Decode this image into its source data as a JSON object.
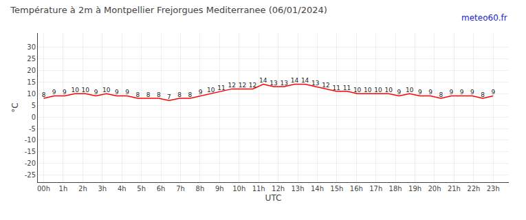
{
  "chart_data": {
    "type": "line",
    "title": "Température à 2m à Montpellier Frejorgues Mediterranee (06/01/2024)",
    "x_label": "UTC",
    "y_label": "°C",
    "annotations": [
      {
        "text": "meteo60.fr",
        "color": "#2222cc"
      }
    ],
    "x": [
      0,
      0.5348837209,
      1.0697674419,
      1.6046511628,
      2.1395348837,
      2.6744186047,
      3.2093023256,
      3.7441860465,
      4.2790697674,
      4.8139534884,
      5.3488372093,
      5.8837209302,
      6.4186046512,
      6.9534883721,
      7.488372093,
      8.023255814,
      8.5581395349,
      9.0930232558,
      9.6279069767,
      10.1627906977,
      10.6976744186,
      11.2325581395,
      11.7674418605,
      12.3023255814,
      12.8372093023,
      13.3720930233,
      13.9069767442,
      14.4418604651,
      14.976744186,
      15.511627907,
      16.0465116279,
      16.5813953488,
      17.1162790698,
      17.6511627907,
      18.1860465116,
      18.7209302326,
      19.2558139535,
      19.7906976744,
      20.3255813953,
      20.8604651163,
      21.3953488372,
      21.9302325581,
      22.4651162791,
      23
    ],
    "values": [
      8,
      9,
      9,
      10,
      10,
      9,
      10,
      9,
      9,
      8,
      8,
      8,
      7,
      8,
      8,
      9,
      10,
      11,
      12,
      12,
      12,
      14,
      13,
      13,
      14,
      14,
      13,
      12,
      11,
      11,
      10,
      10,
      10,
      10,
      9,
      10,
      9,
      9,
      8,
      9,
      9,
      9,
      8,
      9
    ],
    "color": "#ff0000",
    "data_labels": true,
    "grid": true,
    "xlim": [
      -0.3,
      23.8
    ],
    "xticks": [
      {
        "value": 0,
        "label": "00h"
      },
      {
        "value": 1,
        "label": "1h"
      },
      {
        "value": 2,
        "label": "2h"
      },
      {
        "value": 3,
        "label": "3h"
      },
      {
        "value": 4,
        "label": "4h"
      },
      {
        "value": 5,
        "label": "5h"
      },
      {
        "value": 6,
        "label": "6h"
      },
      {
        "value": 7,
        "label": "7h"
      },
      {
        "value": 8,
        "label": "8h"
      },
      {
        "value": 9,
        "label": "9h"
      },
      {
        "value": 10,
        "label": "10h"
      },
      {
        "value": 11,
        "label": "11h"
      },
      {
        "value": 12,
        "label": "12h"
      },
      {
        "value": 13,
        "label": "13h"
      },
      {
        "value": 14,
        "label": "14h"
      },
      {
        "value": 15,
        "label": "15h"
      },
      {
        "value": 16,
        "label": "16h"
      },
      {
        "value": 17,
        "label": "17h"
      },
      {
        "value": 18,
        "label": "18h"
      },
      {
        "value": 19,
        "label": "19h"
      },
      {
        "value": 20,
        "label": "20h"
      },
      {
        "value": 21,
        "label": "21h"
      },
      {
        "value": 22,
        "label": "22h"
      },
      {
        "value": 23,
        "label": "23h"
      }
    ],
    "ylim": [
      -28,
      36
    ],
    "yticks": [
      -25,
      -20,
      -15,
      -10,
      -5,
      0,
      5,
      10,
      15,
      20,
      25,
      30
    ]
  }
}
